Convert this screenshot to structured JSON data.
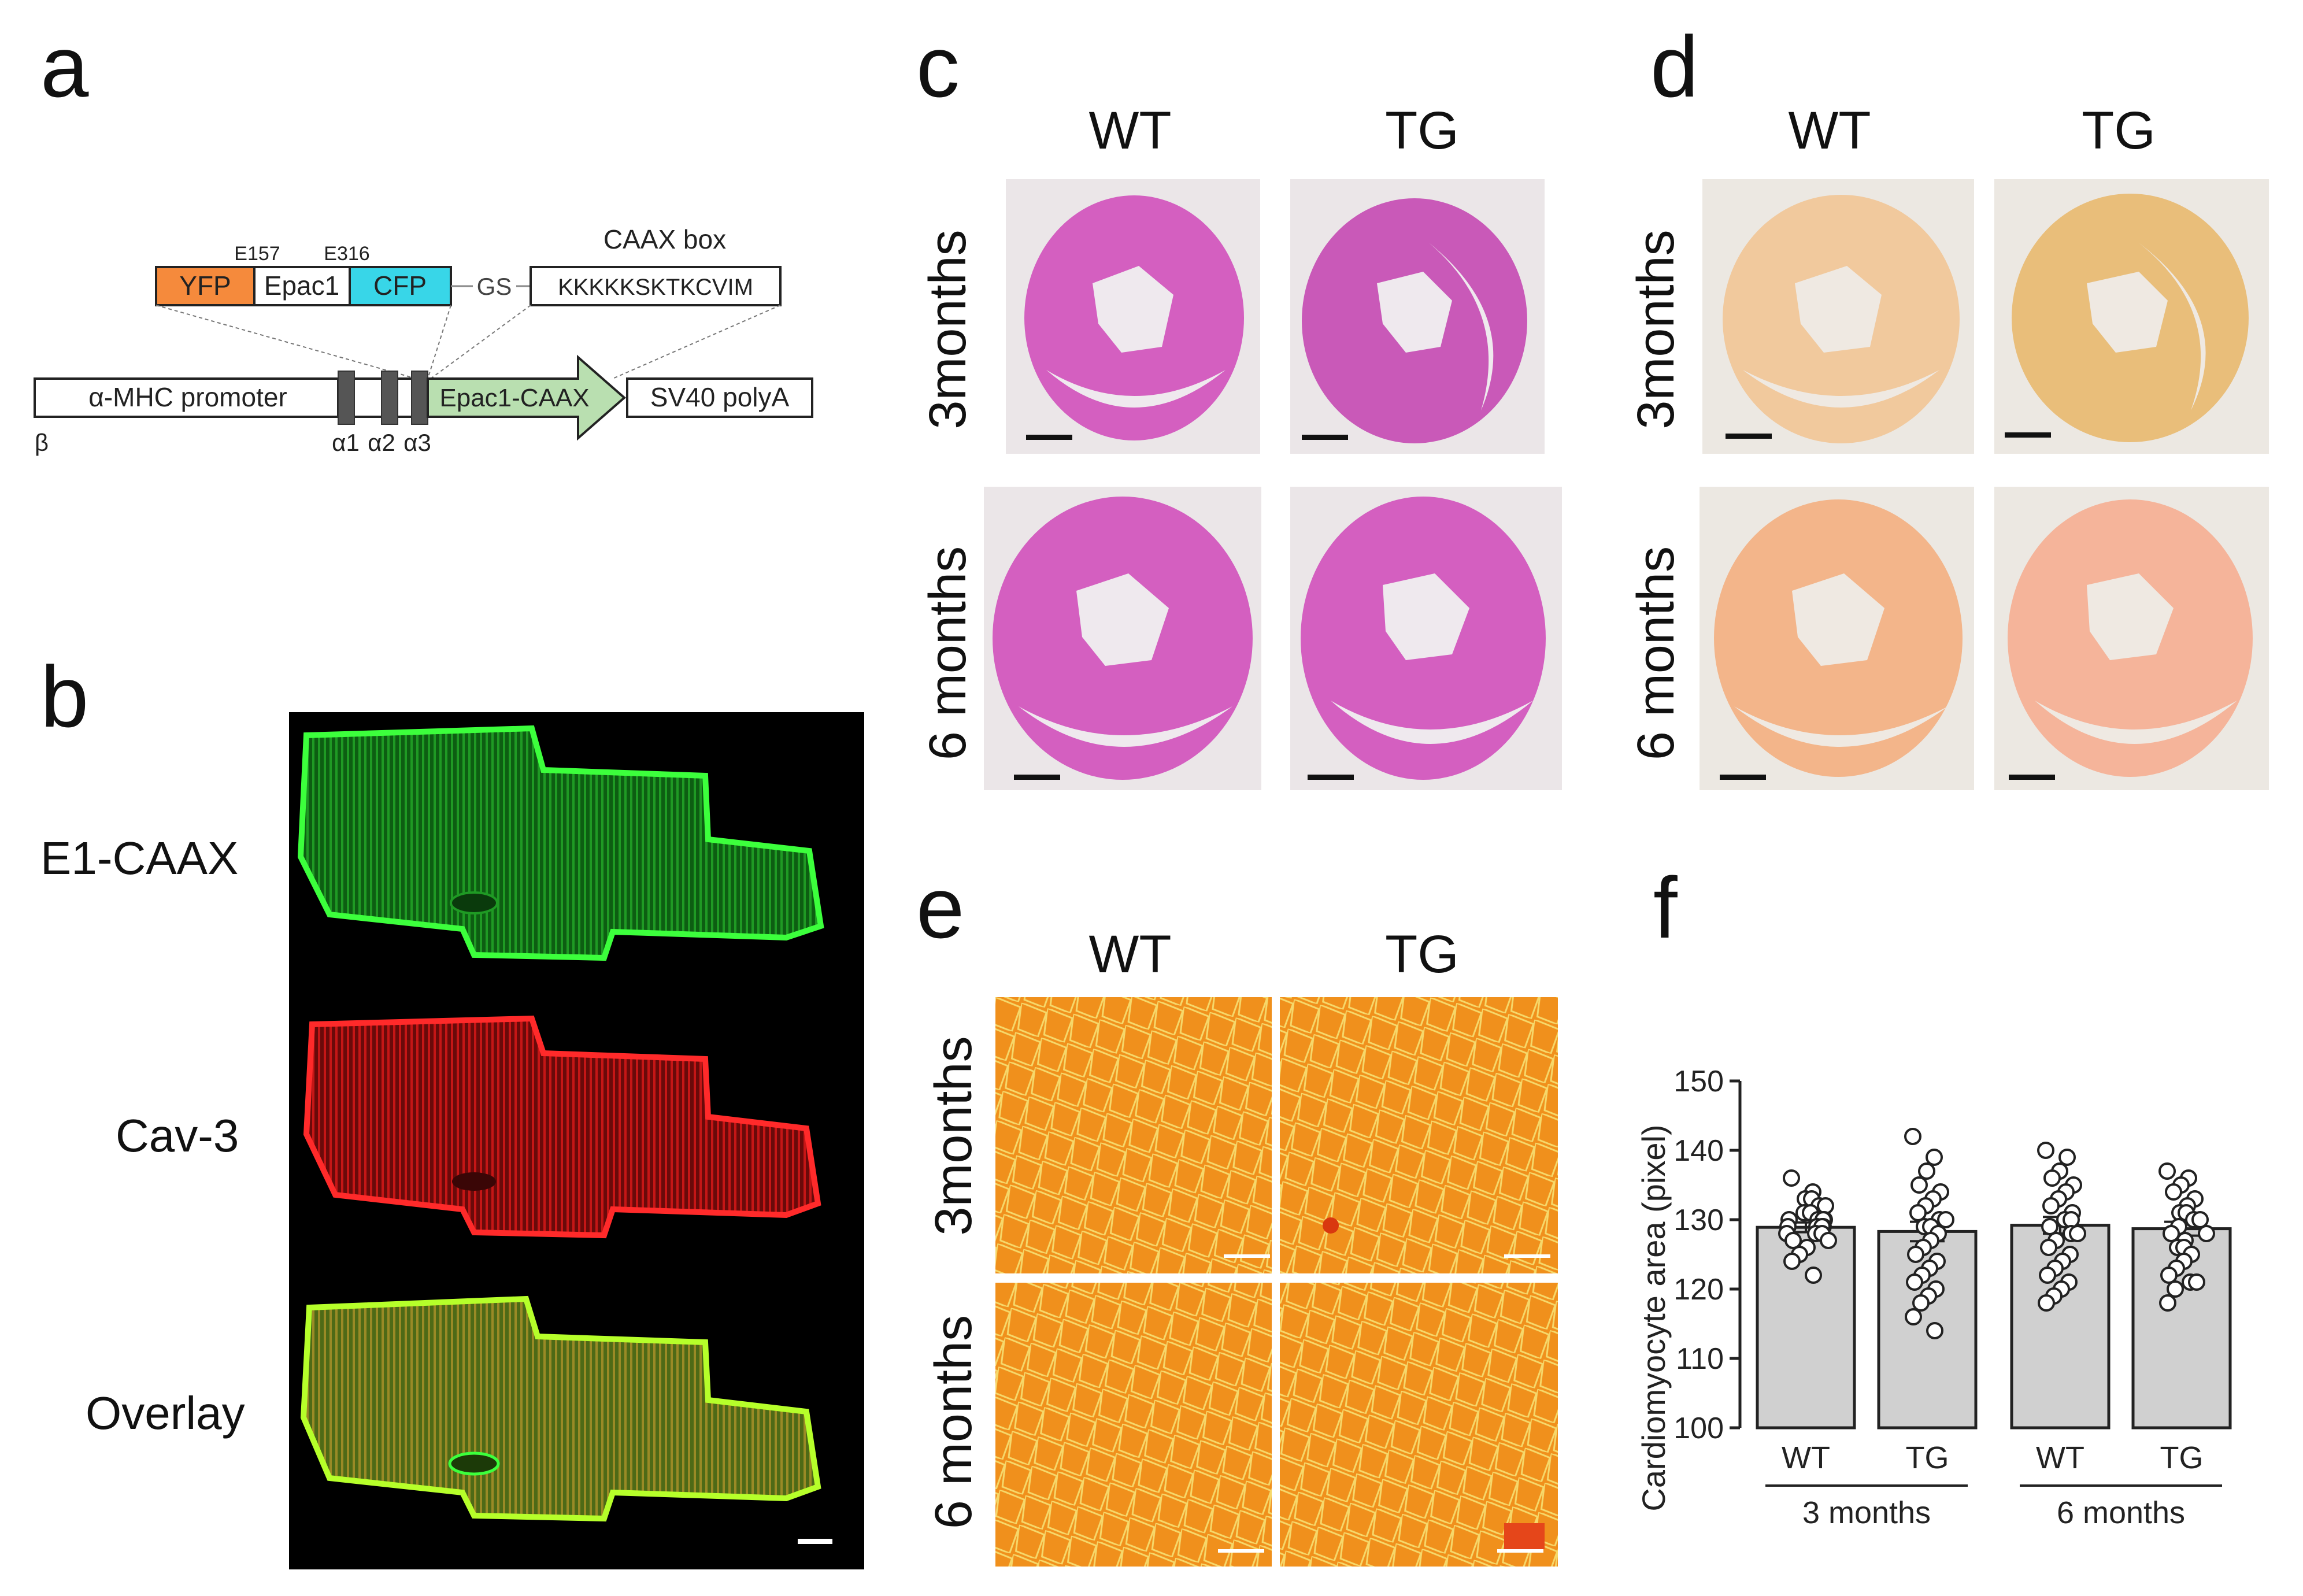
{
  "panels": {
    "a": {
      "label": "a",
      "construct": {
        "yfp": "YFP",
        "epac1": "Epac1",
        "cfp": "CFP",
        "e157": "E157",
        "e316": "E316",
        "gs": "GS",
        "caax_box_title": "CAAX box",
        "caax_seq": "KKKKKSKTKCVIM",
        "promoter": "α-MHC promoter",
        "epac_caax": "Epac1-CAAX",
        "polya": "SV40 polyA",
        "beta": "β",
        "a1": "α1",
        "a2": "α2",
        "a3": "α3"
      },
      "colors": {
        "yfp": "#f58a3c",
        "cfp": "#38d6e8",
        "epac_arrow": "#b9dfb0"
      }
    },
    "b": {
      "label": "b",
      "rows": [
        "E1-CAAX",
        "Cav-3",
        "Overlay"
      ]
    },
    "c": {
      "label": "c",
      "cols": [
        "WT",
        "TG"
      ],
      "rows": [
        "3months",
        "6 months"
      ]
    },
    "d": {
      "label": "d",
      "cols": [
        "WT",
        "TG"
      ],
      "rows": [
        "3months",
        "6 months"
      ]
    },
    "e": {
      "label": "e",
      "cols": [
        "WT",
        "TG"
      ],
      "rows": [
        "3months",
        "6 months"
      ]
    },
    "f": {
      "label": "f"
    }
  },
  "chart_data": {
    "type": "bar",
    "ylabel": "Cardiomyocyte area (pixel)",
    "ylim": [
      100,
      150
    ],
    "yticks": [
      100,
      110,
      120,
      130,
      140,
      150
    ],
    "categories": [
      "WT",
      "TG",
      "WT",
      "TG"
    ],
    "groups": [
      {
        "label": "3 months",
        "categories": [
          "WT",
          "TG"
        ]
      },
      {
        "label": "6 months",
        "categories": [
          "WT",
          "TG"
        ]
      }
    ],
    "values": [
      128.9,
      128.3,
      129.2,
      128.7
    ],
    "sem": [
      0.7,
      1.4,
      1.2,
      1.0
    ],
    "bar_color": "#d0d0d0",
    "points": [
      [
        136,
        134,
        133,
        133,
        132,
        132,
        131,
        131,
        130,
        130,
        130,
        130,
        129,
        129,
        129,
        129,
        128,
        128,
        128,
        127,
        127,
        126,
        125,
        124,
        122
      ],
      [
        142,
        139,
        137,
        135,
        134,
        133,
        132,
        131,
        130,
        130,
        129,
        129,
        128,
        127,
        126,
        125,
        124,
        123,
        122,
        121,
        120,
        119,
        118,
        116,
        114
      ],
      [
        140,
        139,
        137,
        136,
        135,
        134,
        133,
        132,
        131,
        130,
        130,
        129,
        128,
        128,
        127,
        126,
        125,
        124,
        123,
        122,
        121,
        120,
        119,
        118
      ],
      [
        137,
        136,
        135,
        134,
        133,
        132,
        131,
        131,
        130,
        130,
        129,
        128,
        128,
        127,
        126,
        126,
        125,
        124,
        123,
        122,
        121,
        121,
        120,
        118
      ]
    ]
  }
}
